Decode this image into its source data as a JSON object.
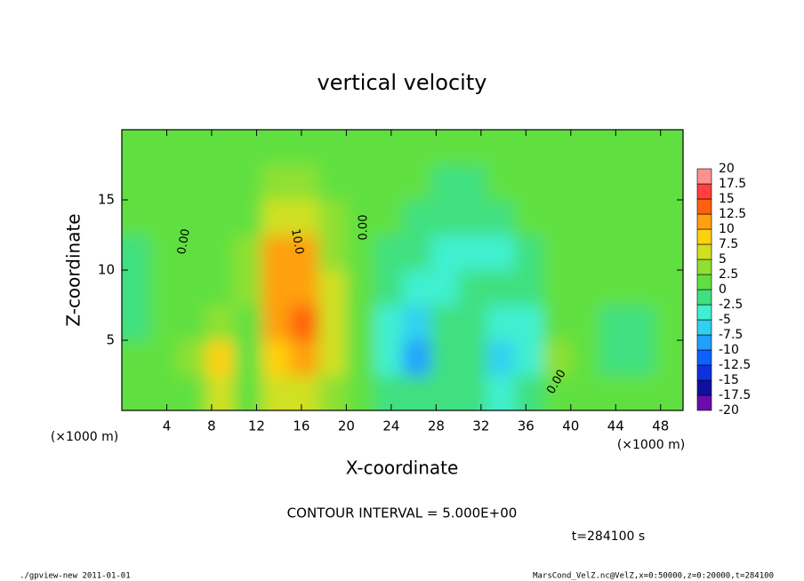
{
  "chart_data": {
    "type": "contour",
    "title": "vertical velocity",
    "xlabel": "X-coordinate",
    "ylabel": "Z-coordinate",
    "x_unit": "(×1000 m)",
    "y_unit": "(×1000 m)",
    "xlim": [
      0,
      50
    ],
    "ylim": [
      0,
      20
    ],
    "xticks": [
      4,
      8,
      12,
      16,
      20,
      24,
      28,
      32,
      36,
      40,
      44,
      48
    ],
    "yticks": [
      5,
      10,
      15
    ],
    "x": [
      1.25,
      3.75,
      6.25,
      8.75,
      11.25,
      13.75,
      16.25,
      18.75,
      21.25,
      23.75,
      26.25,
      28.75,
      31.25,
      33.75,
      36.25,
      38.75,
      41.25,
      43.75,
      46.25,
      48.75
    ],
    "y": [
      1.25,
      3.75,
      6.25,
      8.75,
      11.25,
      13.75,
      16.25,
      18.75
    ],
    "values": [
      [
        1,
        1,
        2,
        6,
        1,
        5,
        7,
        3,
        1,
        -1,
        -2,
        -1,
        -1,
        -3,
        -2,
        2,
        1,
        0,
        1,
        1
      ],
      [
        0,
        1,
        3,
        8,
        1,
        9,
        12,
        5,
        1,
        -4,
        -9,
        -2,
        -2,
        -7,
        -3,
        3,
        1,
        -1,
        -2,
        0
      ],
      [
        -1,
        1,
        2,
        4,
        2,
        11,
        13,
        5,
        1,
        -4,
        -6,
        -2,
        -2,
        -4,
        -3,
        2,
        1,
        -1,
        -1,
        0
      ],
      [
        -2,
        1,
        1,
        1,
        3,
        11,
        12,
        5,
        1,
        -2,
        -3,
        -3,
        -2,
        -2,
        -2,
        0,
        1,
        1,
        0,
        0
      ],
      [
        -1,
        1,
        1,
        1,
        3,
        10,
        10,
        4,
        1,
        -1,
        -2,
        -3,
        -3,
        -3,
        -1,
        0,
        2,
        1,
        0,
        0
      ],
      [
        0,
        1,
        1,
        1,
        2,
        6,
        6,
        3,
        0,
        0,
        -1,
        -2,
        -1,
        -1,
        0,
        0,
        2,
        1,
        0,
        0
      ],
      [
        0,
        1,
        1,
        1,
        1,
        3,
        3,
        1,
        0,
        0,
        0,
        -1,
        -1,
        0,
        0,
        0,
        1,
        1,
        0,
        0
      ],
      [
        1,
        1,
        1,
        1,
        1,
        1,
        1,
        1,
        0,
        0,
        0,
        0,
        0,
        0,
        0,
        0,
        1,
        1,
        1,
        1
      ]
    ],
    "colorbar": {
      "levels": [
        -20,
        -17.5,
        -15,
        -12.5,
        -10,
        -7.5,
        -5,
        -2.5,
        0,
        2.5,
        5,
        7.5,
        10,
        12.5,
        15,
        17.5,
        20
      ],
      "colors": [
        "#6a0dad",
        "#1010a0",
        "#1030e0",
        "#1060ff",
        "#20a0ff",
        "#30d0f0",
        "#40f0d0",
        "#40e080",
        "#60e040",
        "#90e030",
        "#d0e020",
        "#ffd010",
        "#ffa010",
        "#ff6010",
        "#ff4040",
        "#ff9090"
      ]
    },
    "contour_labels": [
      "0.00",
      "10.0",
      "0.00",
      "0.00"
    ],
    "contour_interval": "CONTOUR INTERVAL = 5.000E+00",
    "time": "t=284100 s",
    "footer_left": "./gpview-new  2011-01-01",
    "footer_right": "MarsCond_VelZ.nc@VelZ,x=0:50000,z=0:20000,t=284100"
  }
}
